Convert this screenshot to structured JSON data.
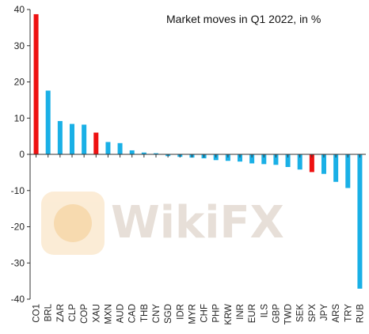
{
  "chart_data": {
    "type": "bar",
    "title": "Market moves in Q1 2022, in %",
    "categories": [
      "CO1",
      "BRL",
      "ZAR",
      "CLP",
      "COP",
      "XAU",
      "MXN",
      "AUD",
      "CAD",
      "THB",
      "CNY",
      "SGD",
      "IDR",
      "MYR",
      "CHF",
      "PHP",
      "KRW",
      "INR",
      "EUR",
      "ILS",
      "GBP",
      "TWD",
      "SEK",
      "SPX",
      "JPY",
      "ARS",
      "TRY",
      "RUB"
    ],
    "values": [
      38.7,
      17.6,
      9.2,
      8.4,
      8.2,
      6.0,
      3.4,
      3.1,
      1.1,
      0.5,
      0.3,
      -0.5,
      -0.7,
      -0.9,
      -1.1,
      -1.6,
      -1.8,
      -2.0,
      -2.5,
      -2.7,
      -2.9,
      -3.5,
      -4.2,
      -4.9,
      -5.4,
      -7.6,
      -9.3,
      -37.1
    ],
    "highlighted": [
      "CO1",
      "XAU",
      "SPX"
    ],
    "ylim": [
      -40,
      40
    ],
    "yticks": [
      -40,
      -30,
      -20,
      -10,
      0,
      10,
      20,
      30,
      40
    ],
    "grid": false,
    "colors": {
      "default": "#1ab0e6",
      "highlight": "#ee1111"
    }
  },
  "watermark": {
    "text": "WikiFX"
  }
}
